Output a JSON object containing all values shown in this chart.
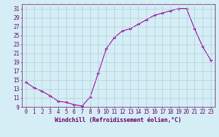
{
  "x": [
    0,
    1,
    2,
    3,
    4,
    5,
    6,
    7,
    8,
    9,
    10,
    11,
    12,
    13,
    14,
    15,
    16,
    17,
    18,
    19,
    20,
    21,
    22,
    23
  ],
  "y": [
    14.5,
    13.3,
    12.5,
    11.5,
    10.3,
    10.0,
    9.5,
    9.2,
    11.2,
    16.5,
    22.0,
    24.5,
    26.0,
    26.5,
    27.5,
    28.5,
    29.5,
    30.0,
    30.5,
    31.0,
    31.0,
    26.5,
    22.5,
    19.5
  ],
  "line_color": "#990099",
  "marker": "D",
  "marker_size": 2,
  "xlabel": "Windchill (Refroidissement éolien,°C)",
  "xlim": [
    -0.5,
    23.5
  ],
  "ylim": [
    9,
    32
  ],
  "yticks": [
    9,
    11,
    13,
    15,
    17,
    19,
    21,
    23,
    25,
    27,
    29,
    31
  ],
  "xticks": [
    0,
    1,
    2,
    3,
    4,
    5,
    6,
    7,
    8,
    9,
    10,
    11,
    12,
    13,
    14,
    15,
    16,
    17,
    18,
    19,
    20,
    21,
    22,
    23
  ],
  "bg_color": "#d5eef5",
  "grid_color": "#b0ccd8",
  "font_color": "#660066",
  "tick_font_size": 5.5,
  "xlabel_font_size": 6.0
}
